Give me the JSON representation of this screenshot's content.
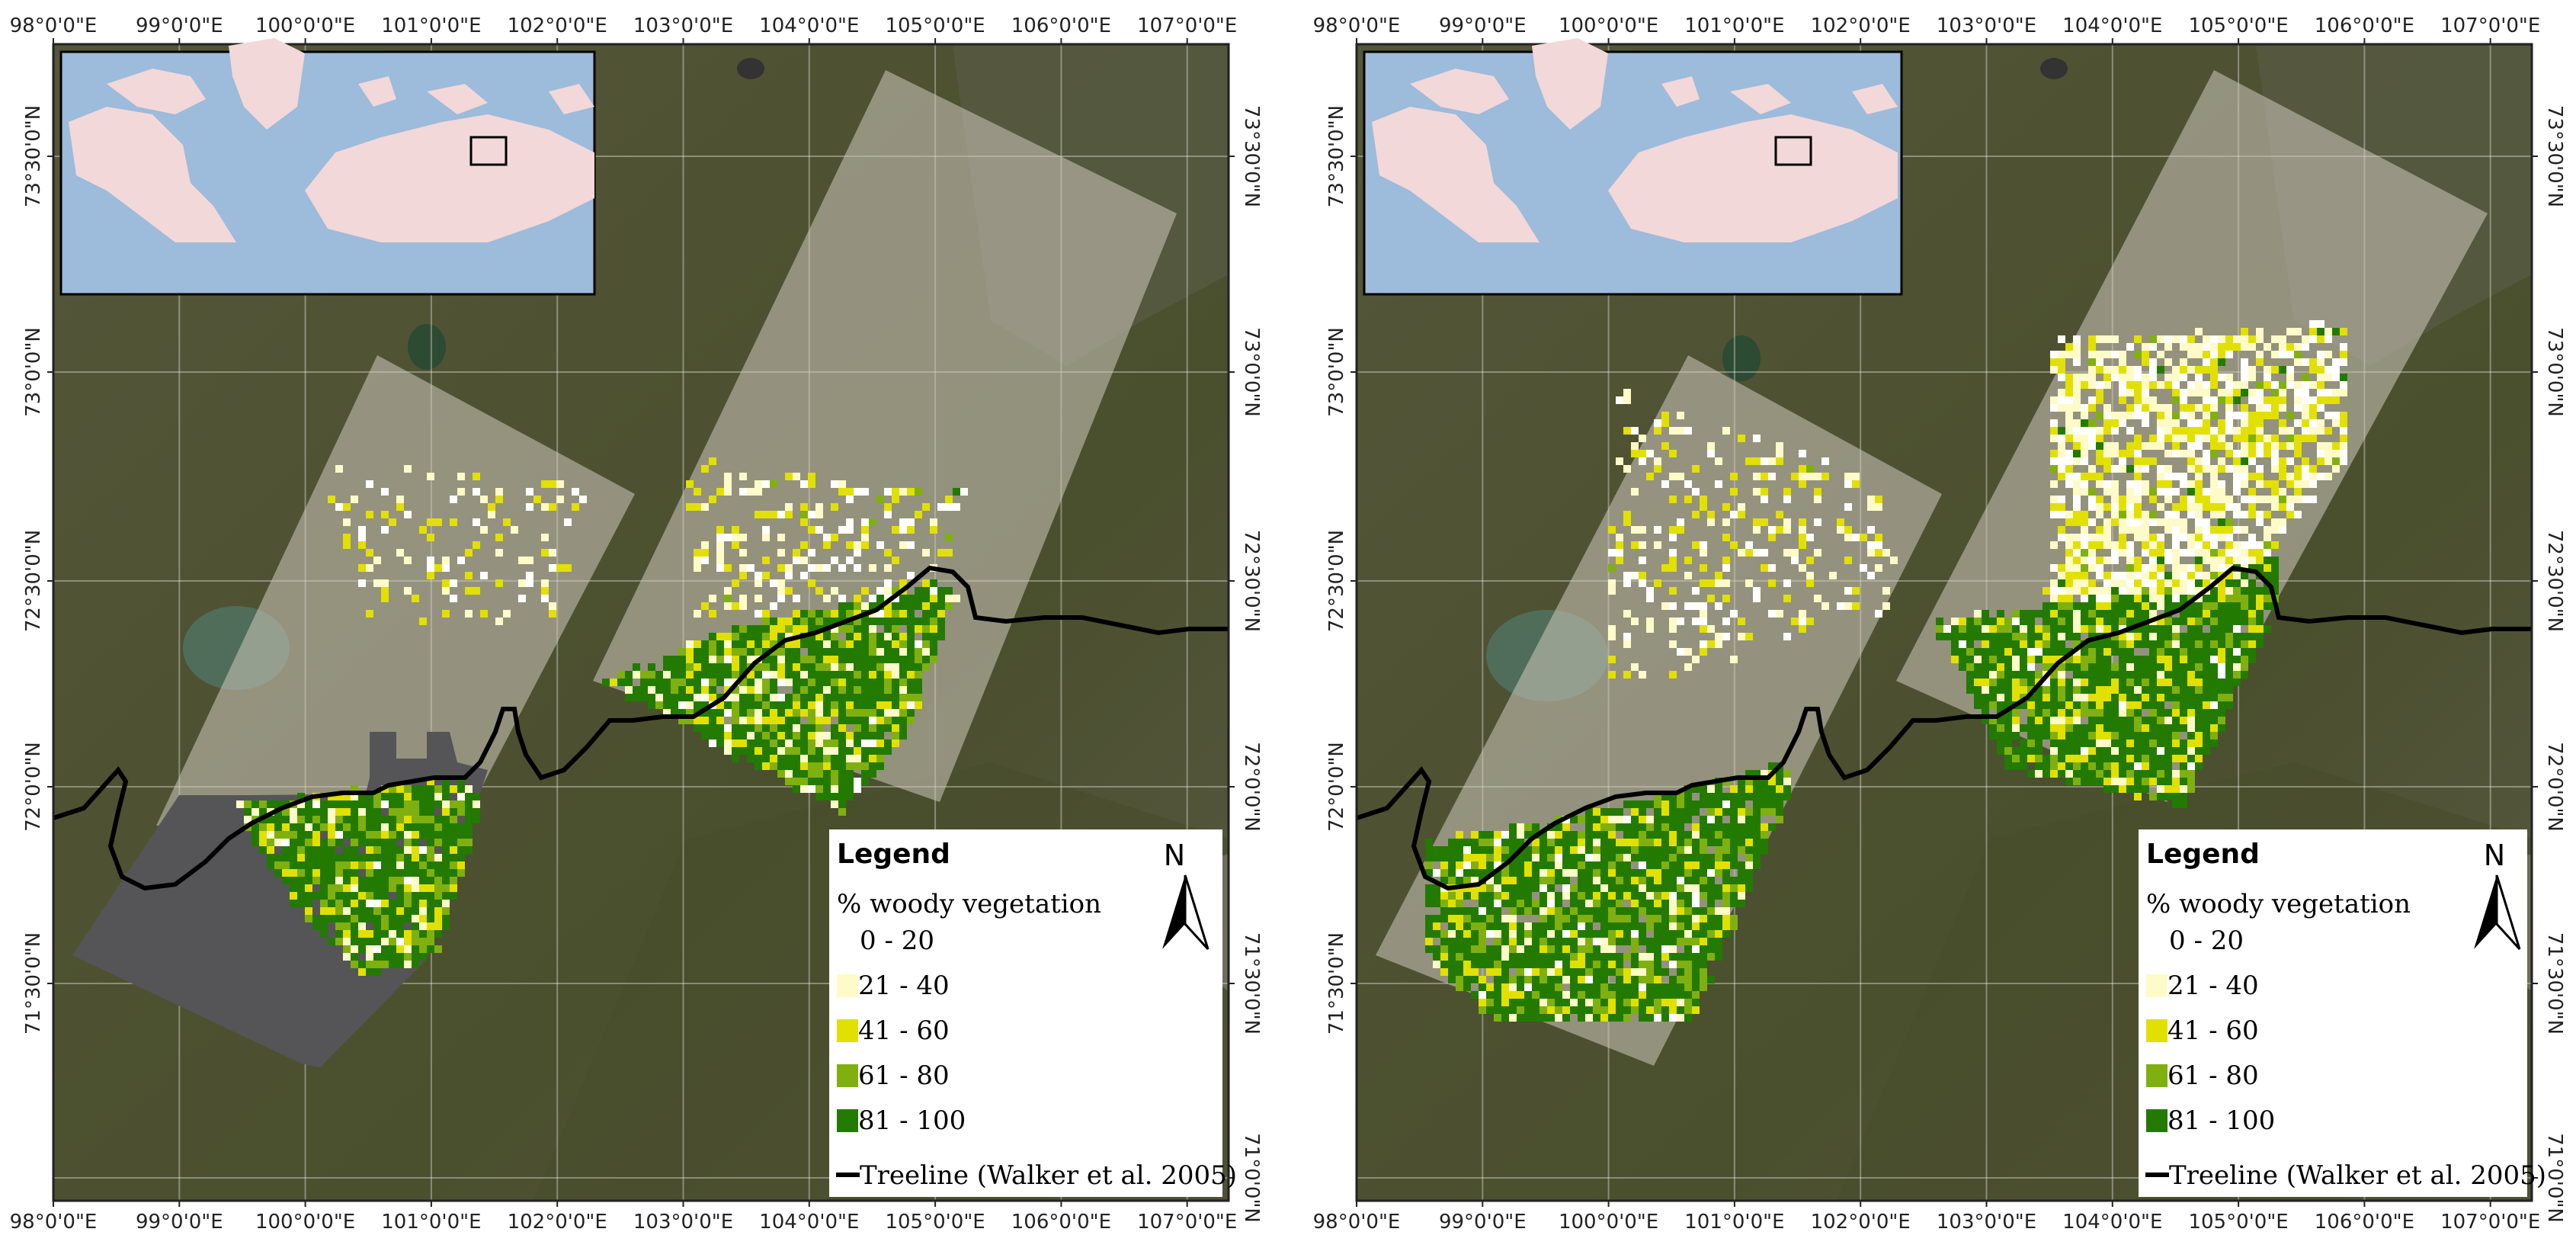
{
  "panels": [
    {
      "id": "left",
      "variant": "left",
      "lon_labels_top": [
        "98°0'0\"E",
        "99°0'0\"E",
        "100°0'0\"E",
        "101°0'0\"E",
        "102°0'0\"E",
        "103°0'0\"E",
        "104°0'0\"E",
        "105°0'0\"E",
        "106°0'0\"E",
        "107°0'0\"E"
      ],
      "lon_labels_bottom": [
        "98°0'0\"E",
        "99°0'0\"E",
        "100°0'0\"E",
        "101°0'0\"E",
        "102°0'0\"E",
        "103°0'0\"E",
        "104°0'0\"E",
        "105°0'0\"E",
        "106°0'0\"E",
        "107°0'0\"E"
      ],
      "lat_labels_left": [
        "73°30'0\"N",
        "73°0'0\"N",
        "72°30'0\"N",
        "72°0'0\"N",
        "71°30'0\"N"
      ],
      "lat_labels_right": [
        "73°30'0\"N",
        "73°0'0\"N",
        "72°30'0\"N",
        "72°0'0\"N",
        "71°30'0\"N",
        "71°0'0\"N"
      ]
    },
    {
      "id": "right",
      "variant": "right",
      "lon_labels_top": [
        "98°0'0\"E",
        "99°0'0\"E",
        "100°0'0\"E",
        "101°0'0\"E",
        "102°0'0\"E",
        "103°0'0\"E",
        "104°0'0\"E",
        "105°0'0\"E",
        "106°0'0\"E",
        "107°0'0\"E"
      ],
      "lon_labels_bottom": [
        "98°0'0\"E",
        "99°0'0\"E",
        "100°0'0\"E",
        "101°0'0\"E",
        "102°0'0\"E",
        "103°0'0\"E",
        "104°0'0\"E",
        "105°0'0\"E",
        "106°0'0\"E",
        "107°0'0\"E"
      ],
      "lat_labels_left": [
        "73°30'0\"N",
        "73°0'0\"N",
        "72°30'0\"N",
        "72°0'0\"N",
        "71°30'0\"N"
      ],
      "lat_labels_right": [
        "73°30'0\"N",
        "73°0'0\"N",
        "72°30'0\"N",
        "72°0'0\"N",
        "71°30'0\"N",
        "71°0'0\"N"
      ]
    }
  ],
  "legend": {
    "title": "Legend",
    "subtitle": "% woody vegetation",
    "classes": [
      {
        "label": "0 - 20",
        "color": "#ffffff"
      },
      {
        "label": "21 - 40",
        "color": "#fffbc8"
      },
      {
        "label": "41 - 60",
        "color": "#e2e000"
      },
      {
        "label": "61 - 80",
        "color": "#7fb010"
      },
      {
        "label": "81 - 100",
        "color": "#237a00"
      }
    ],
    "treeline_label": "Treeline (Walker et al. 2005)",
    "north_label": "N"
  },
  "colors": {
    "terrain": "#4d5130",
    "water": "#9dbbdb",
    "land_inset": "#f2d8d8",
    "treeline": "#000000",
    "nodata": "#555558"
  }
}
